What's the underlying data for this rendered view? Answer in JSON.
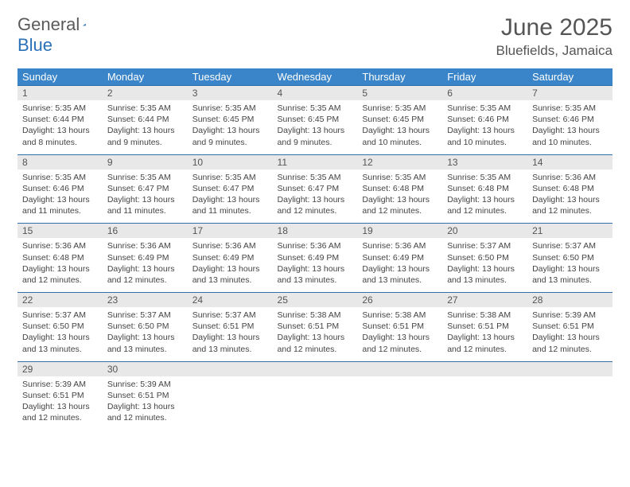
{
  "brand": {
    "word1": "General",
    "word2": "Blue"
  },
  "title": "June 2025",
  "location": "Bluefields, Jamaica",
  "colors": {
    "header_bg": "#3a85c9",
    "header_text": "#ffffff",
    "daynum_bg": "#e8e8e8",
    "border": "#2f6faa",
    "title_color": "#555555",
    "body_text": "#444444",
    "logo_gray": "#5a5a5a",
    "logo_blue": "#2a71b8"
  },
  "weekdays": [
    "Sunday",
    "Monday",
    "Tuesday",
    "Wednesday",
    "Thursday",
    "Friday",
    "Saturday"
  ],
  "weeks": [
    [
      {
        "n": "1",
        "sr": "5:35 AM",
        "ss": "6:44 PM",
        "dl": "13 hours and 8 minutes."
      },
      {
        "n": "2",
        "sr": "5:35 AM",
        "ss": "6:44 PM",
        "dl": "13 hours and 9 minutes."
      },
      {
        "n": "3",
        "sr": "5:35 AM",
        "ss": "6:45 PM",
        "dl": "13 hours and 9 minutes."
      },
      {
        "n": "4",
        "sr": "5:35 AM",
        "ss": "6:45 PM",
        "dl": "13 hours and 9 minutes."
      },
      {
        "n": "5",
        "sr": "5:35 AM",
        "ss": "6:45 PM",
        "dl": "13 hours and 10 minutes."
      },
      {
        "n": "6",
        "sr": "5:35 AM",
        "ss": "6:46 PM",
        "dl": "13 hours and 10 minutes."
      },
      {
        "n": "7",
        "sr": "5:35 AM",
        "ss": "6:46 PM",
        "dl": "13 hours and 10 minutes."
      }
    ],
    [
      {
        "n": "8",
        "sr": "5:35 AM",
        "ss": "6:46 PM",
        "dl": "13 hours and 11 minutes."
      },
      {
        "n": "9",
        "sr": "5:35 AM",
        "ss": "6:47 PM",
        "dl": "13 hours and 11 minutes."
      },
      {
        "n": "10",
        "sr": "5:35 AM",
        "ss": "6:47 PM",
        "dl": "13 hours and 11 minutes."
      },
      {
        "n": "11",
        "sr": "5:35 AM",
        "ss": "6:47 PM",
        "dl": "13 hours and 12 minutes."
      },
      {
        "n": "12",
        "sr": "5:35 AM",
        "ss": "6:48 PM",
        "dl": "13 hours and 12 minutes."
      },
      {
        "n": "13",
        "sr": "5:35 AM",
        "ss": "6:48 PM",
        "dl": "13 hours and 12 minutes."
      },
      {
        "n": "14",
        "sr": "5:36 AM",
        "ss": "6:48 PM",
        "dl": "13 hours and 12 minutes."
      }
    ],
    [
      {
        "n": "15",
        "sr": "5:36 AM",
        "ss": "6:48 PM",
        "dl": "13 hours and 12 minutes."
      },
      {
        "n": "16",
        "sr": "5:36 AM",
        "ss": "6:49 PM",
        "dl": "13 hours and 12 minutes."
      },
      {
        "n": "17",
        "sr": "5:36 AM",
        "ss": "6:49 PM",
        "dl": "13 hours and 13 minutes."
      },
      {
        "n": "18",
        "sr": "5:36 AM",
        "ss": "6:49 PM",
        "dl": "13 hours and 13 minutes."
      },
      {
        "n": "19",
        "sr": "5:36 AM",
        "ss": "6:49 PM",
        "dl": "13 hours and 13 minutes."
      },
      {
        "n": "20",
        "sr": "5:37 AM",
        "ss": "6:50 PM",
        "dl": "13 hours and 13 minutes."
      },
      {
        "n": "21",
        "sr": "5:37 AM",
        "ss": "6:50 PM",
        "dl": "13 hours and 13 minutes."
      }
    ],
    [
      {
        "n": "22",
        "sr": "5:37 AM",
        "ss": "6:50 PM",
        "dl": "13 hours and 13 minutes."
      },
      {
        "n": "23",
        "sr": "5:37 AM",
        "ss": "6:50 PM",
        "dl": "13 hours and 13 minutes."
      },
      {
        "n": "24",
        "sr": "5:37 AM",
        "ss": "6:51 PM",
        "dl": "13 hours and 13 minutes."
      },
      {
        "n": "25",
        "sr": "5:38 AM",
        "ss": "6:51 PM",
        "dl": "13 hours and 12 minutes."
      },
      {
        "n": "26",
        "sr": "5:38 AM",
        "ss": "6:51 PM",
        "dl": "13 hours and 12 minutes."
      },
      {
        "n": "27",
        "sr": "5:38 AM",
        "ss": "6:51 PM",
        "dl": "13 hours and 12 minutes."
      },
      {
        "n": "28",
        "sr": "5:39 AM",
        "ss": "6:51 PM",
        "dl": "13 hours and 12 minutes."
      }
    ],
    [
      {
        "n": "29",
        "sr": "5:39 AM",
        "ss": "6:51 PM",
        "dl": "13 hours and 12 minutes."
      },
      {
        "n": "30",
        "sr": "5:39 AM",
        "ss": "6:51 PM",
        "dl": "13 hours and 12 minutes."
      },
      null,
      null,
      null,
      null,
      null
    ]
  ],
  "labels": {
    "sunrise": "Sunrise:",
    "sunset": "Sunset:",
    "daylight": "Daylight:"
  }
}
